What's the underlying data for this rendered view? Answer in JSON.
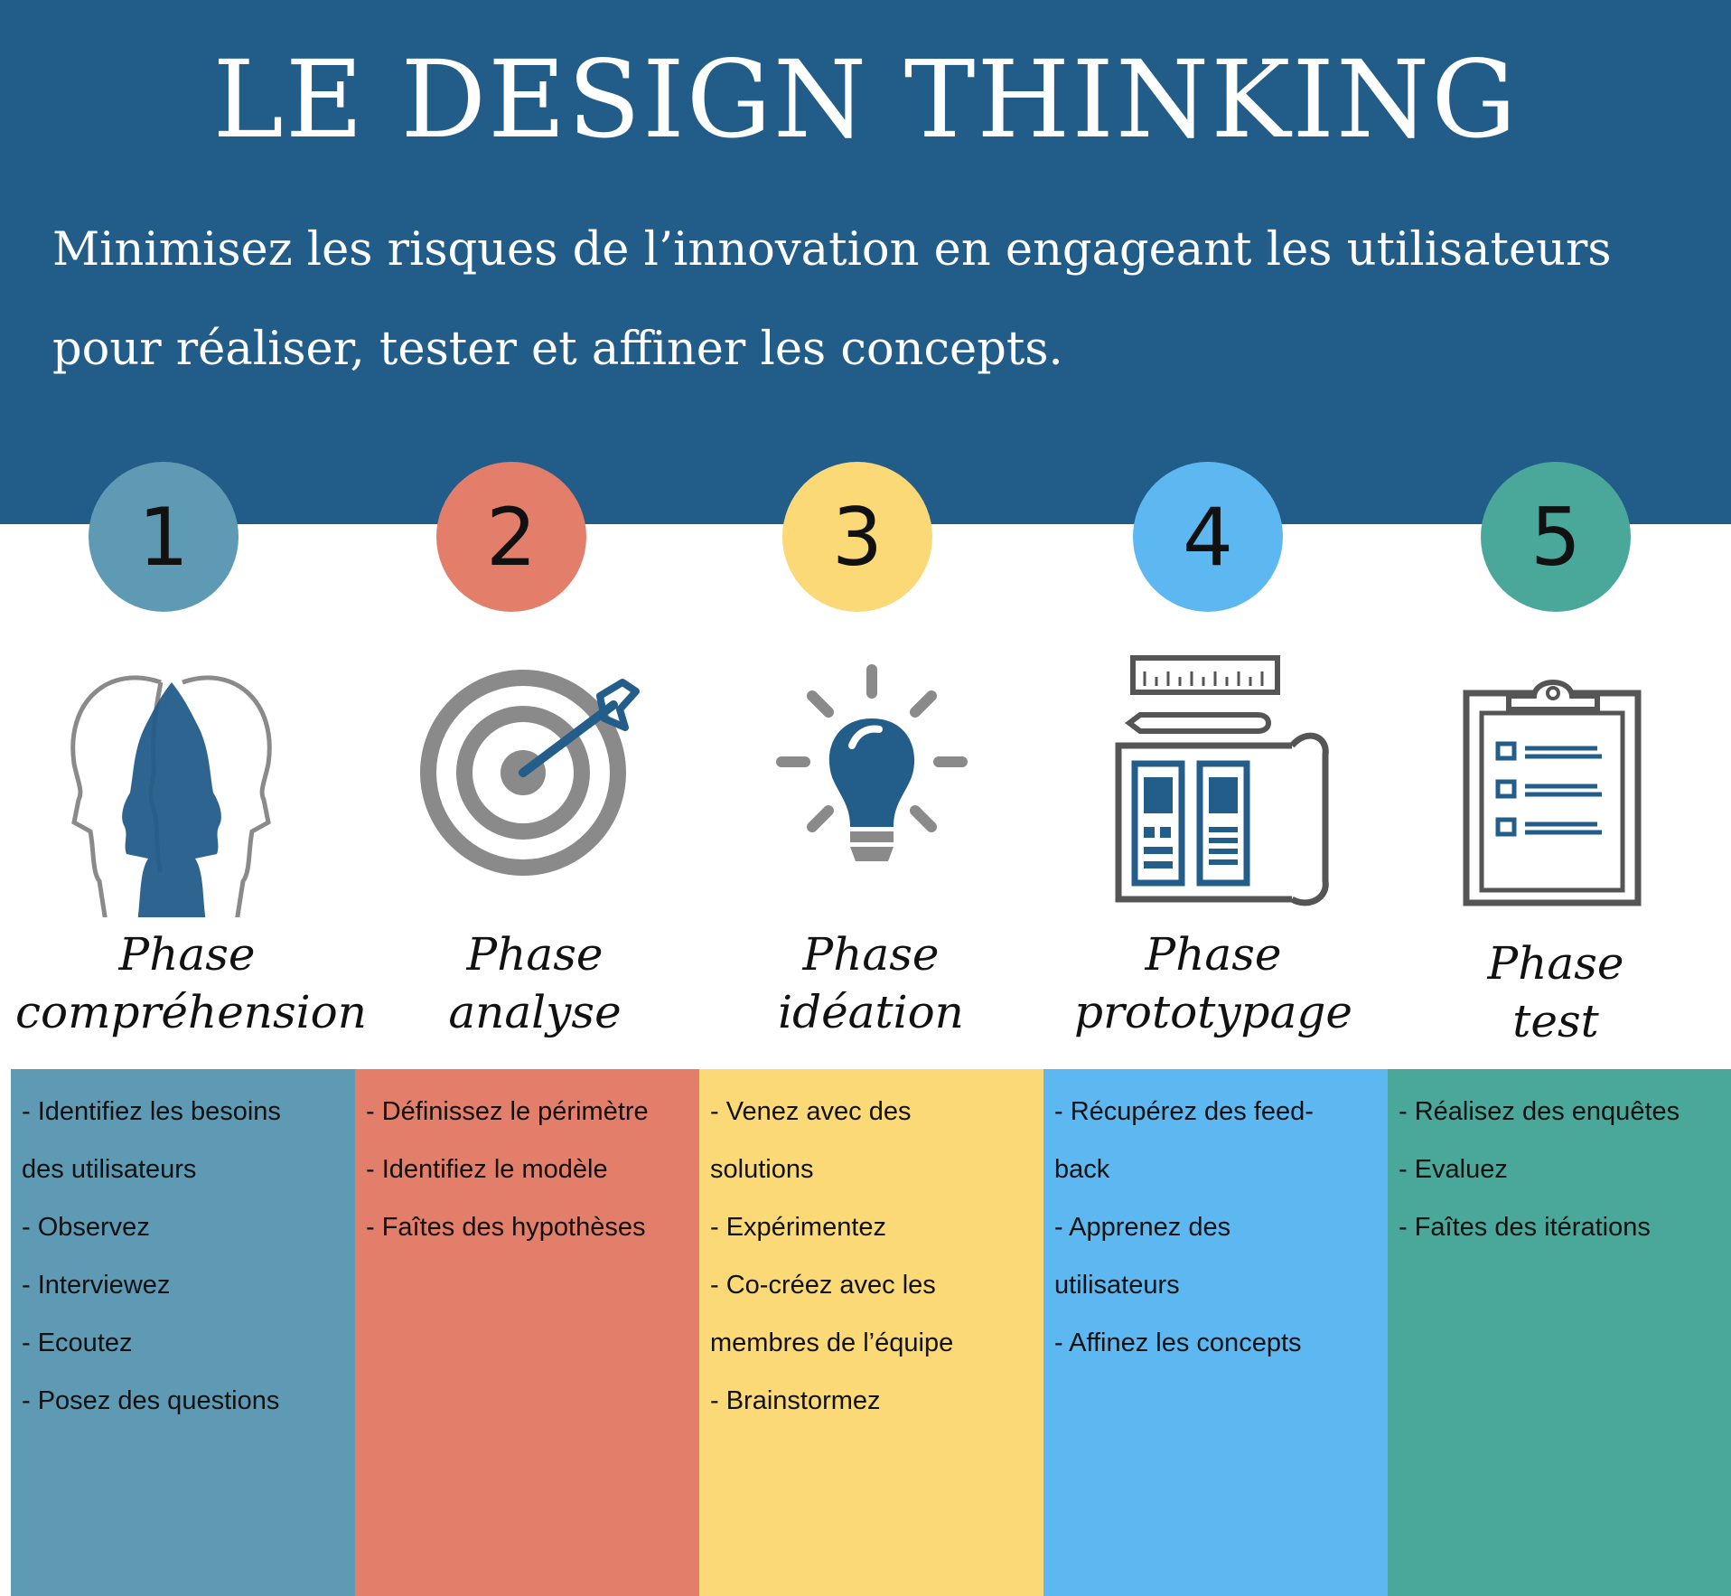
{
  "header": {
    "title": "LE DESIGN THINKING",
    "subtitle_line1": "Minimisez les risques de l’innovation en engageant les utilisateurs",
    "subtitle_line2": "pour réaliser, tester et affiner les concepts."
  },
  "colors": {
    "banner": "#225d89",
    "phase1": "#5f9ab5",
    "phase2": "#e27e6a",
    "phase3": "#fbd976",
    "phase4": "#5db8f2",
    "phase5": "#49a89a",
    "icon_gray": "#888888",
    "icon_blue": "#235d8a"
  },
  "phases": [
    {
      "number": "1",
      "icon": "heads-icon",
      "label_line1": "Phase",
      "label_line2": "compréhension",
      "items": [
        "- Identifiez les besoins",
        " des utilisateurs",
        "- Observez",
        "- Interviewez",
        "- Ecoutez",
        "- Posez des questions"
      ]
    },
    {
      "number": "2",
      "icon": "target-icon",
      "label_line1": "Phase",
      "label_line2": "analyse",
      "items": [
        "- Définissez le périmètre",
        "- Identifiez le modèle",
        "- Faîtes des hypothèses"
      ]
    },
    {
      "number": "3",
      "icon": "lightbulb-icon",
      "label_line1": "Phase",
      "label_line2": "idéation",
      "items": [
        "- Venez avec des",
        "solutions",
        "- Expérimentez",
        "- Co-créez avec les",
        "membres de l’équipe",
        "- Brainstormez"
      ]
    },
    {
      "number": "4",
      "icon": "blueprint-icon",
      "label_line1": "Phase",
      "label_line2": "prototypage",
      "items": [
        "- Récupérez des feed-",
        "back",
        "- Apprenez des",
        "utilisateurs",
        "- Affinez les concepts"
      ]
    },
    {
      "number": "5",
      "icon": "clipboard-icon",
      "label_line1": "Phase",
      "label_line2": "test",
      "items": [
        "- Réalisez des enquêtes",
        "- Evaluez",
        "- Faîtes des itérations"
      ]
    }
  ]
}
